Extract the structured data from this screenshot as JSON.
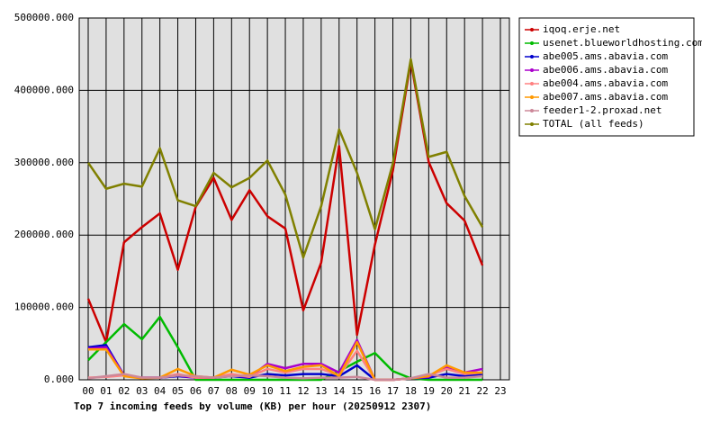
{
  "chart_data": {
    "type": "line",
    "title": "Top 7 incoming feeds by volume (KB) per hour (20250912 2307)",
    "categories": [
      "00",
      "01",
      "02",
      "03",
      "04",
      "05",
      "06",
      "07",
      "08",
      "09",
      "10",
      "11",
      "12",
      "13",
      "14",
      "15",
      "16",
      "17",
      "18",
      "19",
      "20",
      "21",
      "22",
      "23"
    ],
    "ylim": [
      0,
      500000
    ],
    "yticks": [
      {
        "value": 0,
        "label": "0.000"
      },
      {
        "value": 100000,
        "label": "100000.000"
      },
      {
        "value": 200000,
        "label": "200000.000"
      },
      {
        "value": 300000,
        "label": "300000.000"
      },
      {
        "value": 400000,
        "label": "400000.000"
      },
      {
        "value": 500000,
        "label": "500000.000"
      }
    ],
    "grid": true,
    "legend": "right",
    "series": [
      {
        "name": "iqoq.erje.net",
        "color": "#cc0000",
        "values": [
          112000,
          52000,
          190000,
          211000,
          230000,
          152000,
          239000,
          279000,
          221000,
          262000,
          226000,
          209000,
          96000,
          162000,
          323000,
          62000,
          187000,
          289000,
          440000,
          301000,
          244000,
          220000,
          158000,
          null
        ]
      },
      {
        "name": "usenet.blueworldhosting.com",
        "color": "#00bb00",
        "values": [
          27000,
          52000,
          77000,
          56000,
          87000,
          45000,
          0,
          0,
          0,
          0,
          0,
          0,
          0,
          0,
          12000,
          25000,
          37000,
          12000,
          2000,
          0,
          0,
          0,
          0,
          null
        ]
      },
      {
        "name": "abe005.ams.abavia.com",
        "color": "#0000cc",
        "values": [
          45000,
          48000,
          6000,
          3000,
          3000,
          5000,
          3000,
          3000,
          5000,
          3000,
          8000,
          6000,
          8000,
          8000,
          5000,
          20000,
          0,
          0,
          2000,
          3000,
          8000,
          5000,
          8000,
          null
        ]
      },
      {
        "name": "abe006.ams.abavia.com",
        "color": "#aa00cc",
        "values": [
          43000,
          45000,
          6000,
          3000,
          3000,
          6000,
          3000,
          3000,
          6000,
          4000,
          22000,
          16000,
          22000,
          22000,
          10000,
          55000,
          0,
          0,
          2000,
          4000,
          18000,
          10000,
          15000,
          null
        ]
      },
      {
        "name": "abe004.ams.abavia.com",
        "color": "#ff8080",
        "values": [
          3000,
          4000,
          6000,
          3000,
          3000,
          8000,
          3000,
          3000,
          8000,
          4000,
          15000,
          10000,
          15000,
          15000,
          6000,
          40000,
          0,
          0,
          2000,
          6000,
          15000,
          8000,
          10000,
          null
        ]
      },
      {
        "name": "abe007.ams.abavia.com",
        "color": "#ff9900",
        "values": [
          42000,
          42000,
          5000,
          2000,
          3000,
          15000,
          5000,
          3000,
          14000,
          7000,
          20000,
          12000,
          18000,
          20000,
          5000,
          52000,
          0,
          0,
          2000,
          5000,
          20000,
          10000,
          10000,
          null
        ]
      },
      {
        "name": "feeder1-2.proxad.net",
        "color": "#cc8899",
        "values": [
          2000,
          5000,
          8000,
          3000,
          3000,
          6000,
          5000,
          3000,
          5000,
          6000,
          5000,
          3000,
          2000,
          3000,
          3000,
          4000,
          0,
          0,
          2000,
          8000,
          3000,
          3000,
          5000,
          null
        ]
      },
      {
        "name": "TOTAL (all feeds)",
        "color": "#808000",
        "values": [
          300000,
          264000,
          271000,
          267000,
          320000,
          248000,
          240000,
          286000,
          266000,
          279000,
          303000,
          256000,
          169000,
          240000,
          346000,
          286000,
          208000,
          299000,
          443000,
          308000,
          315000,
          254000,
          211000,
          null
        ]
      }
    ]
  }
}
